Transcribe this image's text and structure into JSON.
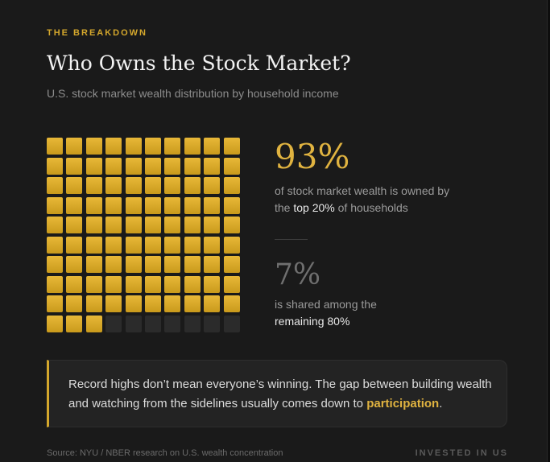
{
  "eyebrow": "THE BREAKDOWN",
  "title": "Who Owns the Stock Market?",
  "subtitle": "U.S. stock market wealth distribution by household income",
  "stats": {
    "top": {
      "value": "93%",
      "text_before": "of stock market wealth is owned by the ",
      "highlight": "top 20%",
      "text_after": " of households"
    },
    "rest": {
      "value": "7%",
      "text_before": "is shared among the ",
      "highlight": "remaining 80%"
    }
  },
  "callout": {
    "text_before": "Record highs don’t mean everyone’s winning. The gap between building wealth and watching from the sidelines usually comes down to ",
    "accent": "participation",
    "text_after": "."
  },
  "footer": {
    "source": "Source: NYU / NBER research on U.S. wealth concentration",
    "brand": "INVESTED IN US"
  },
  "colors": {
    "accent": "#d4a72c",
    "filled": "#e0b340",
    "empty": "#2b2b2b"
  },
  "chart_data": {
    "type": "waffle",
    "grid": [
      10,
      10
    ],
    "total": 100,
    "series": [
      {
        "name": "top 20%",
        "value": 93,
        "color": "#e0b340"
      },
      {
        "name": "remaining 80%",
        "value": 7,
        "color": "#2b2b2b"
      }
    ]
  }
}
